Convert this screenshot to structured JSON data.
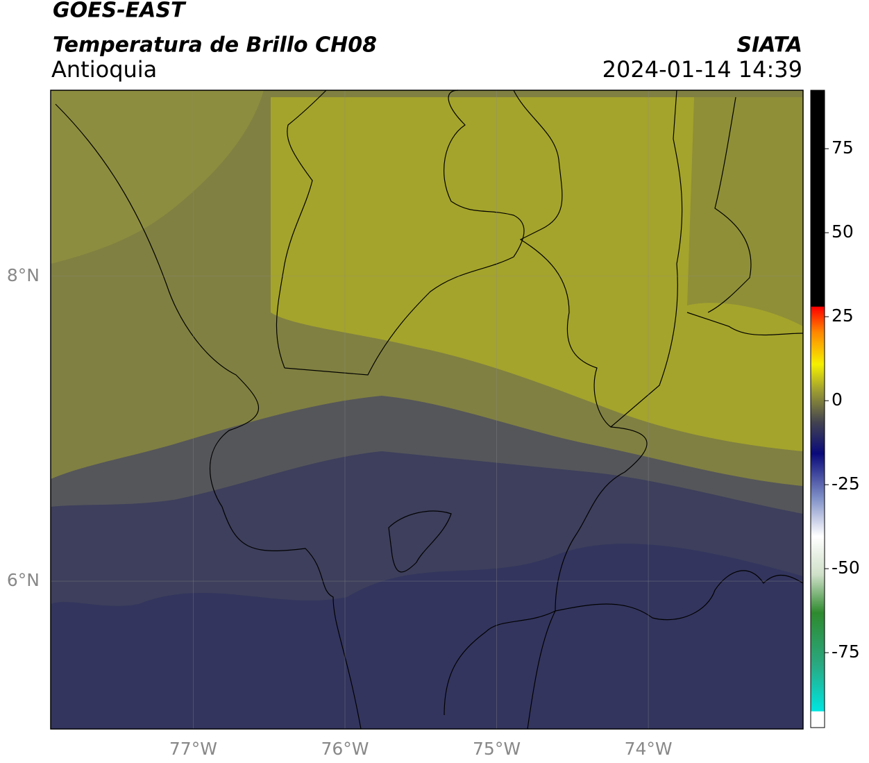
{
  "title": "GOES-EAST",
  "subtitle": "Temperatura de Brillo CH08",
  "region": "Antioquia",
  "source": "SIATA",
  "timestamp": "2024-01-14 14:39",
  "map": {
    "xlim": [
      -77.94,
      -72.98
    ],
    "ylim": [
      5.03,
      9.22
    ],
    "xticks": [
      {
        "value": -77,
        "label": "77°W"
      },
      {
        "value": -76,
        "label": "76°W"
      },
      {
        "value": -75,
        "label": "75°W"
      },
      {
        "value": -74,
        "label": "74°W"
      }
    ],
    "yticks": [
      {
        "value": 8,
        "label": "8°N"
      },
      {
        "value": 6,
        "label": "6°N"
      }
    ],
    "grid": true
  },
  "colorbar": {
    "lim": [
      -97.3,
      92.4
    ],
    "ticks": [
      75,
      50,
      25,
      0,
      -25,
      -50,
      -75
    ]
  }
}
